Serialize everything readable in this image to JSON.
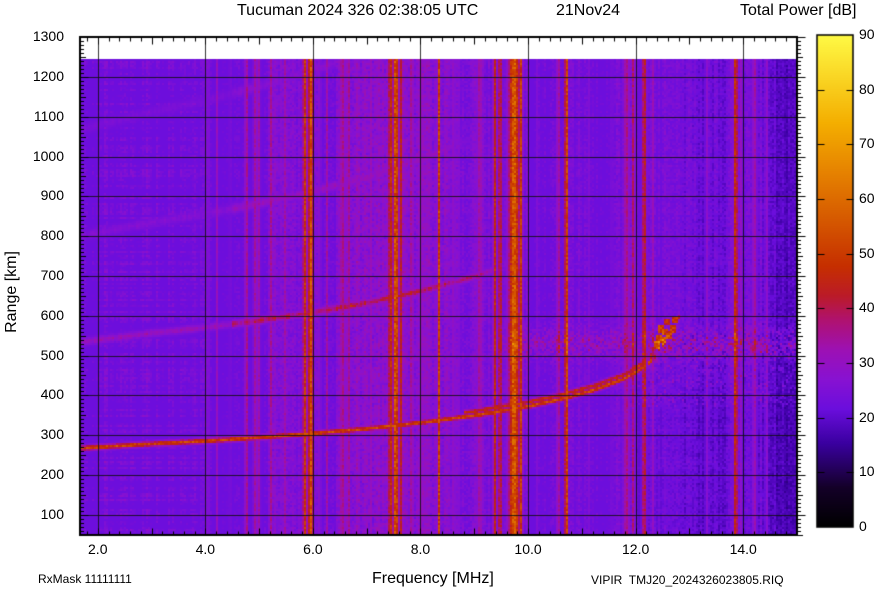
{
  "header": {
    "title": "Tucuman 2024 326 02:38:05 UTC",
    "date": "21Nov24",
    "colorbar_title": "Total Power [dB]"
  },
  "x_axis": {
    "label": "Frequency [MHz]",
    "tick_labels": [
      "2.0",
      "4.0",
      "6.0",
      "8.0",
      "10.0",
      "12.0",
      "14.0"
    ],
    "tick_values": [
      2,
      4,
      6,
      8,
      10,
      12,
      14
    ],
    "min": 1.67,
    "max": 15.0,
    "minor_step": 0.2,
    "grid_step": 2
  },
  "y_axis": {
    "label": "Range [km]",
    "tick_labels": [
      "100",
      "200",
      "300",
      "400",
      "500",
      "600",
      "700",
      "800",
      "900",
      "1000",
      "1100",
      "1200",
      "1300"
    ],
    "tick_values": [
      100,
      200,
      300,
      400,
      500,
      600,
      700,
      800,
      900,
      1000,
      1100,
      1200,
      1300
    ],
    "min": 50,
    "max": 1300,
    "minor_step": 10,
    "grid_step": 100
  },
  "colorbar": {
    "tick_labels": [
      "0",
      "10",
      "20",
      "30",
      "40",
      "50",
      "60",
      "70",
      "80",
      "90"
    ],
    "tick_values": [
      0,
      10,
      20,
      30,
      40,
      50,
      60,
      70,
      80,
      90
    ],
    "min": 0,
    "max": 90,
    "units": "dB",
    "palette": [
      [
        0.0,
        "#000000"
      ],
      [
        0.08,
        "#140028"
      ],
      [
        0.17,
        "#3a00a0"
      ],
      [
        0.24,
        "#6b0edd"
      ],
      [
        0.3,
        "#8812d2"
      ],
      [
        0.36,
        "#9d11b4"
      ],
      [
        0.42,
        "#b01270"
      ],
      [
        0.47,
        "#bb1b28"
      ],
      [
        0.53,
        "#c62f00"
      ],
      [
        0.62,
        "#d55700"
      ],
      [
        0.72,
        "#e68200"
      ],
      [
        0.82,
        "#f4ae00"
      ],
      [
        1.0,
        "#fffa45"
      ]
    ]
  },
  "footer": {
    "rx_mask": "RxMask 11111111",
    "file_id": "VIPIR  TMJ20_2024326023805.RIQ"
  },
  "chart_data": {
    "type": "heatmap",
    "title": "Tucuman 2024 326 02:38:05 UTC  21Nov24",
    "xlabel": "Frequency [MHz]",
    "ylabel": "Range [km]",
    "value_label": "Total Power [dB]",
    "x_range": [
      1.67,
      15.0
    ],
    "y_range": [
      50,
      1300
    ],
    "value_range": [
      0,
      90
    ],
    "grid": {
      "x_step": 2,
      "y_step": 100,
      "on": true
    },
    "background_db": 22,
    "data_top_km": 1245,
    "echo_trace": {
      "description": "F-layer ionogram trace, virtual height vs frequency",
      "critical_frequency_mhz": 12.8,
      "db": 52,
      "points": [
        [
          1.7,
          267
        ],
        [
          3.0,
          278
        ],
        [
          4.0,
          285
        ],
        [
          5.0,
          294
        ],
        [
          6.0,
          304
        ],
        [
          7.0,
          316
        ],
        [
          8.0,
          331
        ],
        [
          9.0,
          349
        ],
        [
          10.0,
          372
        ],
        [
          10.6,
          390
        ],
        [
          11.2,
          412
        ],
        [
          11.8,
          442
        ],
        [
          12.2,
          475
        ],
        [
          12.5,
          515
        ],
        [
          12.7,
          555
        ],
        [
          12.8,
          585
        ]
      ],
      "hops": [
        {
          "n": 1,
          "f_max": 12.85,
          "db": 52,
          "sigma_km": 6
        },
        {
          "n": 2,
          "f_max": 9.6,
          "db": 39,
          "sigma_km": 9
        },
        {
          "n": 3,
          "f_max": 9.1,
          "db": 30,
          "sigma_km": 12
        },
        {
          "n": 4,
          "f_max": 8.7,
          "db": 27,
          "sigma_km": 13
        }
      ],
      "x_mode_split_km": 11,
      "x_mode_from_mhz": 8.8,
      "x_mode_db": 46
    },
    "spread_f_dots": [
      [
        12.38,
        525
      ],
      [
        12.45,
        545
      ],
      [
        12.52,
        538
      ],
      [
        12.55,
        560
      ],
      [
        12.62,
        552
      ],
      [
        12.68,
        566
      ],
      [
        12.58,
        584
      ],
      [
        12.74,
        589
      ],
      [
        12.47,
        568
      ]
    ],
    "diffuse_band": {
      "f_start": 9.2,
      "km_center": 532,
      "km_sigma": 26,
      "db": 31,
      "boost_from_mhz": 12.2,
      "boost_db": 33.5
    },
    "rfi_bands": [
      {
        "f": 4.05,
        "hw": 0.02,
        "db": 30
      },
      {
        "f": 4.22,
        "hw": 0.02,
        "db": 31
      },
      {
        "f": 4.46,
        "hw": 0.015,
        "db": 29
      },
      {
        "f": 4.76,
        "hw": 0.02,
        "db": 44
      },
      {
        "f": 4.93,
        "hw": 0.035,
        "db": 34
      },
      {
        "f": 5.01,
        "hw": 0.015,
        "db": 43
      },
      {
        "f": 5.22,
        "hw": 0.02,
        "db": 35
      },
      {
        "f": 5.48,
        "hw": 0.025,
        "db": 33
      },
      {
        "f": 5.85,
        "hw": 0.04,
        "db": 49
      },
      {
        "f": 5.96,
        "hw": 0.05,
        "db": 55
      },
      {
        "f": 6.13,
        "hw": 0.015,
        "db": 40
      },
      {
        "f": 6.27,
        "hw": 0.015,
        "db": 37
      },
      {
        "f": 6.55,
        "hw": 0.05,
        "db": 36
      },
      {
        "f": 6.67,
        "hw": 0.025,
        "db": 35
      },
      {
        "f": 7.07,
        "hw": 0.02,
        "db": 34
      },
      {
        "f": 7.44,
        "hw": 0.035,
        "db": 50
      },
      {
        "f": 7.54,
        "hw": 0.05,
        "db": 57
      },
      {
        "f": 7.64,
        "hw": 0.015,
        "db": 44
      },
      {
        "f": 7.84,
        "hw": 0.02,
        "db": 46
      },
      {
        "f": 8.02,
        "hw": 0.015,
        "db": 36
      },
      {
        "f": 8.34,
        "hw": 0.025,
        "db": 52
      },
      {
        "f": 8.62,
        "hw": 0.025,
        "db": 32
      },
      {
        "f": 8.73,
        "hw": 0.015,
        "db": 32
      },
      {
        "f": 9.1,
        "hw": 0.05,
        "db": 34
      },
      {
        "f": 9.38,
        "hw": 0.03,
        "db": 47
      },
      {
        "f": 9.48,
        "hw": 0.035,
        "db": 45
      },
      {
        "f": 9.74,
        "hw": 0.1,
        "db": 57
      },
      {
        "f": 9.87,
        "hw": 0.03,
        "db": 50
      },
      {
        "f": 10.18,
        "hw": 0.015,
        "db": 30
      },
      {
        "f": 10.56,
        "hw": 0.02,
        "db": 43
      },
      {
        "f": 10.71,
        "hw": 0.025,
        "db": 62
      },
      {
        "f": 11.12,
        "hw": 0.015,
        "db": 30
      },
      {
        "f": 11.56,
        "hw": 0.015,
        "db": 31
      },
      {
        "f": 11.83,
        "hw": 0.05,
        "db": 36
      },
      {
        "f": 11.96,
        "hw": 0.025,
        "db": 40
      },
      {
        "f": 12.16,
        "hw": 0.035,
        "db": 46
      },
      {
        "f": 12.33,
        "hw": 0.015,
        "db": 34
      },
      {
        "f": 13.32,
        "hw": 0.015,
        "db": 30
      },
      {
        "f": 13.86,
        "hw": 0.035,
        "db": 50
      },
      {
        "f": 13.97,
        "hw": 0.015,
        "db": 37
      },
      {
        "f": 14.21,
        "hw": 0.035,
        "db": 34
      },
      {
        "f": 14.43,
        "hw": 0.015,
        "db": 35
      }
    ],
    "noise_zones": [
      {
        "f_min": 1.67,
        "f_max": 2.05,
        "db_add": -1.5
      },
      {
        "f_min": 5.15,
        "f_max": 6.1,
        "db_add": 5
      },
      {
        "f_min": 6.42,
        "f_max": 8.5,
        "db_add": 7
      },
      {
        "f_min": 6.8,
        "f_max": 7.7,
        "db_add": 2
      },
      {
        "f_min": 8.5,
        "f_max": 10.0,
        "db_add": 3.5
      },
      {
        "f_min": 10.4,
        "f_max": 11.1,
        "db_add": 1.5
      },
      {
        "f_min": 11.65,
        "f_max": 12.05,
        "db_add": 3.5
      },
      {
        "f_min": 12.2,
        "f_max": 12.55,
        "db_add": 2.5
      },
      {
        "f_min": 13.7,
        "f_max": 14.35,
        "db_add": 2.5
      },
      {
        "f_min": 14.5,
        "f_max": 15.0,
        "db_add": -2
      }
    ]
  }
}
